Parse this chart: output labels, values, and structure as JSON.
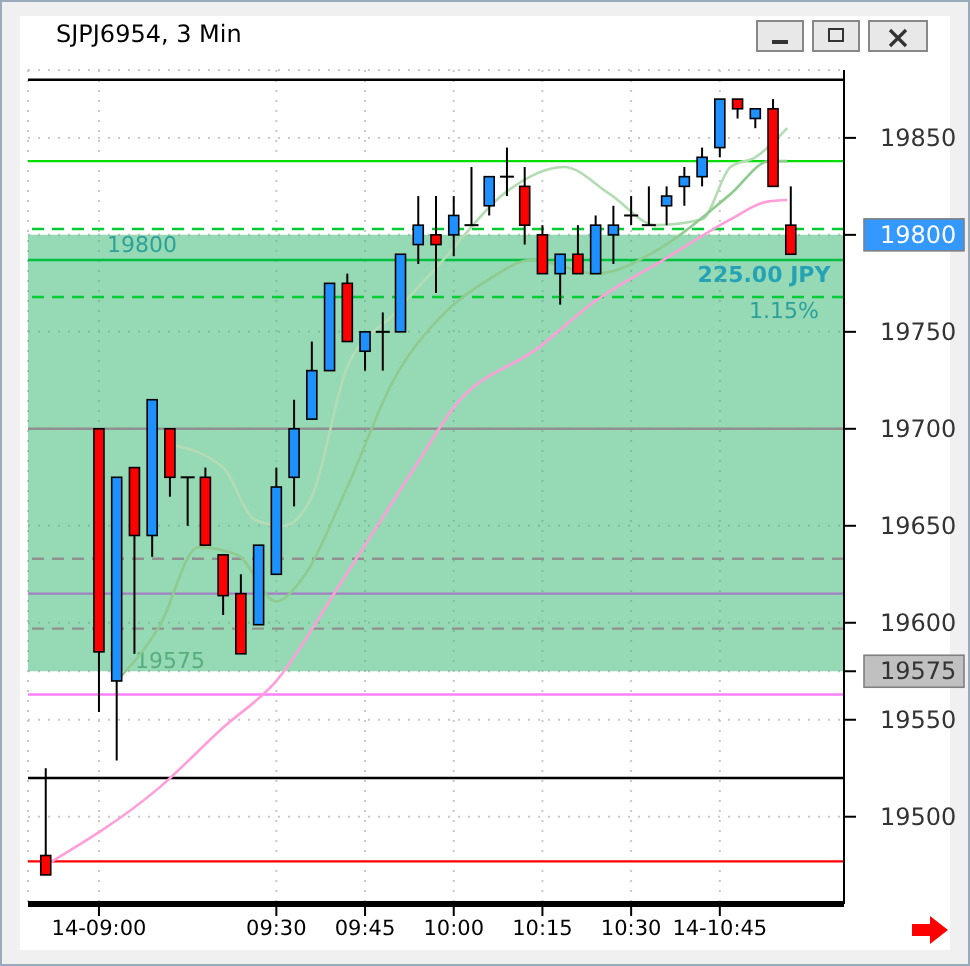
{
  "chart_data": {
    "type": "candlestick",
    "title": "SJPJ6954, 3 Min",
    "x": [
      8.85,
      9.0,
      9.05,
      9.1,
      9.15,
      9.2,
      9.25,
      9.3,
      9.35,
      9.4,
      9.45,
      9.5,
      9.55,
      9.6,
      9.65,
      9.7,
      9.75,
      9.8,
      9.85,
      9.9,
      9.95,
      10.0,
      10.05,
      10.1,
      10.15,
      10.2,
      10.25,
      10.3,
      10.35,
      10.4,
      10.45,
      10.5,
      10.55,
      10.6,
      10.65,
      10.7,
      10.75,
      10.8,
      10.85,
      10.9,
      10.95
    ],
    "ohlc": [
      [
        19480,
        19525,
        19470,
        19470
      ],
      [
        19700,
        19700,
        19554,
        19585
      ],
      [
        19570,
        19675,
        19529,
        19675
      ],
      [
        19680,
        19680,
        19584,
        19645
      ],
      [
        19645,
        19715,
        19634,
        19715
      ],
      [
        19700,
        19700,
        19665,
        19675
      ],
      [
        19675,
        19675,
        19650,
        19675
      ],
      [
        19675,
        19680,
        19640,
        19640
      ],
      [
        19635,
        19635,
        19604,
        19614
      ],
      [
        19615,
        19625,
        19584,
        19584
      ],
      [
        19599,
        19640,
        19599,
        19640
      ],
      [
        19625,
        19680,
        19625,
        19670
      ],
      [
        19675,
        19715,
        19660,
        19700
      ],
      [
        19705,
        19745,
        19705,
        19730
      ],
      [
        19730,
        19775,
        19730,
        19775
      ],
      [
        19775,
        19780,
        19745,
        19745
      ],
      [
        19740,
        19750,
        19730,
        19750
      ],
      [
        19750,
        19760,
        19730,
        19750
      ],
      [
        19750,
        19790,
        19750,
        19790
      ],
      [
        19795,
        19820,
        19785,
        19805
      ],
      [
        19800,
        19820,
        19770,
        19795
      ],
      [
        19800,
        19820,
        19789,
        19810
      ],
      [
        19805,
        19835,
        19805,
        19805
      ],
      [
        19815,
        19830,
        19810,
        19830
      ],
      [
        19830,
        19845,
        19820,
        19830
      ],
      [
        19825,
        19835,
        19795,
        19805
      ],
      [
        19800,
        19805,
        19780,
        19780
      ],
      [
        19780,
        19790,
        19764,
        19790
      ],
      [
        19790,
        19805,
        19780,
        19780
      ],
      [
        19780,
        19810,
        19780,
        19805
      ],
      [
        19800,
        19815,
        19785,
        19805
      ],
      [
        19810,
        19820,
        19805,
        19810
      ],
      [
        19805,
        19825,
        19805,
        19805
      ],
      [
        19815,
        19825,
        19805,
        19820
      ],
      [
        19825,
        19835,
        19815,
        19830
      ],
      [
        19830,
        19845,
        19825,
        19840
      ],
      [
        19845,
        19870,
        19840,
        19870
      ],
      [
        19870,
        19870,
        19860,
        19865
      ],
      [
        19860,
        19865,
        19855,
        19865
      ],
      [
        19865,
        19870,
        19825,
        19825
      ],
      [
        19805,
        19825,
        19790,
        19790
      ]
    ],
    "colors": [
      "#ff0000",
      "#ff0000",
      "#1e90ff",
      "#ff0000",
      "#1e90ff",
      "#ff0000",
      "#000000",
      "#ff0000",
      "#ff0000",
      "#ff0000",
      "#1e90ff",
      "#1e90ff",
      "#1e90ff",
      "#1e90ff",
      "#1e90ff",
      "#ff0000",
      "#1e90ff",
      "#000000",
      "#1e90ff",
      "#1e90ff",
      "#ff0000",
      "#1e90ff",
      "#000000",
      "#1e90ff",
      "#000000",
      "#ff0000",
      "#ff0000",
      "#1e90ff",
      "#ff0000",
      "#1e90ff",
      "#1e90ff",
      "#000000",
      "#000000",
      "#1e90ff",
      "#1e90ff",
      "#1e90ff",
      "#1e90ff",
      "#ff0000",
      "#1e90ff",
      "#ff0000",
      "#ff0000"
    ],
    "series": [
      {
        "type": "line",
        "color": "#b4dcb4",
        "x": [
          9.2,
          9.35,
          9.44,
          9.52,
          9.6,
          9.7,
          9.83,
          9.97,
          10.14,
          10.31,
          10.44,
          10.57,
          10.7,
          10.78,
          10.85,
          10.94
        ],
        "values": [
          19692,
          19680,
          19653,
          19650,
          19665,
          19732,
          19759,
          19787,
          19821,
          19835,
          19821,
          19805,
          19808,
          19835,
          19840,
          19855
        ]
      },
      {
        "type": "line",
        "color": "#8fcb8f",
        "x": [
          9.05,
          9.17,
          9.28,
          9.39,
          9.5,
          9.57,
          9.7,
          9.83,
          9.97,
          10.09,
          10.22,
          10.4,
          10.59,
          10.78,
          10.89,
          10.94
        ],
        "values": [
          19570,
          19598,
          19639,
          19635,
          19611,
          19622,
          19670,
          19725,
          19759,
          19776,
          19787,
          19780,
          19794,
          19821,
          19838,
          19838
        ]
      },
      {
        "type": "line",
        "color": "#ff9ed8",
        "x": [
          8.85,
          9.17,
          9.35,
          9.5,
          9.68,
          9.9,
          10.0,
          10.24,
          10.4,
          10.59,
          10.78,
          10.88,
          10.94
        ],
        "values": [
          19475,
          19515,
          19546,
          19570,
          19620,
          19683,
          19711,
          19742,
          19766,
          19787,
          19808,
          19817,
          19818
        ]
      }
    ],
    "xlim": [
      8.8,
      11.1
    ],
    "xticks": [
      {
        "value": 9,
        "label": "14-09:00"
      },
      {
        "value": 9.5,
        "label": "09:30"
      },
      {
        "value": 9.75,
        "label": "09:45"
      },
      {
        "value": 10,
        "label": "10:00"
      },
      {
        "value": 10.25,
        "label": "10:15"
      },
      {
        "value": 10.5,
        "label": "10:30"
      },
      {
        "value": 10.75,
        "label": "14-10:45"
      }
    ],
    "ylim": [
      19455,
      19885
    ],
    "yticks": [
      19500,
      19550,
      19575,
      19600,
      19650,
      19700,
      19750,
      19800,
      19850
    ],
    "grid": true,
    "ref_lines": [
      {
        "axis": "y",
        "value": 19880,
        "color": "#000000",
        "line_style": "solid"
      },
      {
        "axis": "y",
        "value": 19838,
        "color": "#00dd00",
        "line_style": "solid"
      },
      {
        "axis": "y",
        "value": 19803,
        "color": "#00cc33",
        "line_style": "dashed"
      },
      {
        "axis": "y",
        "value": 19787,
        "color": "#00c040",
        "line_style": "solid"
      },
      {
        "axis": "y",
        "value": 19768,
        "color": "#00cc33",
        "line_style": "dashed"
      },
      {
        "axis": "y",
        "value": 19700,
        "color": "#909090",
        "line_style": "solid"
      },
      {
        "axis": "y",
        "value": 19633,
        "color": "#909090",
        "line_style": "dashed"
      },
      {
        "axis": "y",
        "value": 19615,
        "color": "#a080c0",
        "line_style": "solid"
      },
      {
        "axis": "y",
        "value": 19597,
        "color": "#909090",
        "line_style": "dashed"
      },
      {
        "axis": "y",
        "value": 19563,
        "color": "#ff80ff",
        "line_style": "solid"
      },
      {
        "axis": "y",
        "value": 19520,
        "color": "#000000",
        "line_style": "solid"
      },
      {
        "axis": "y",
        "value": 19477,
        "color": "#ff0000",
        "line_style": "solid"
      }
    ],
    "bands": [
      {
        "axis": "y",
        "from": 19575,
        "to": 19800,
        "color": "#2db36b"
      }
    ],
    "annotations": [
      "19800",
      "225.00 JPY",
      "1.15%",
      "19575"
    ]
  }
}
